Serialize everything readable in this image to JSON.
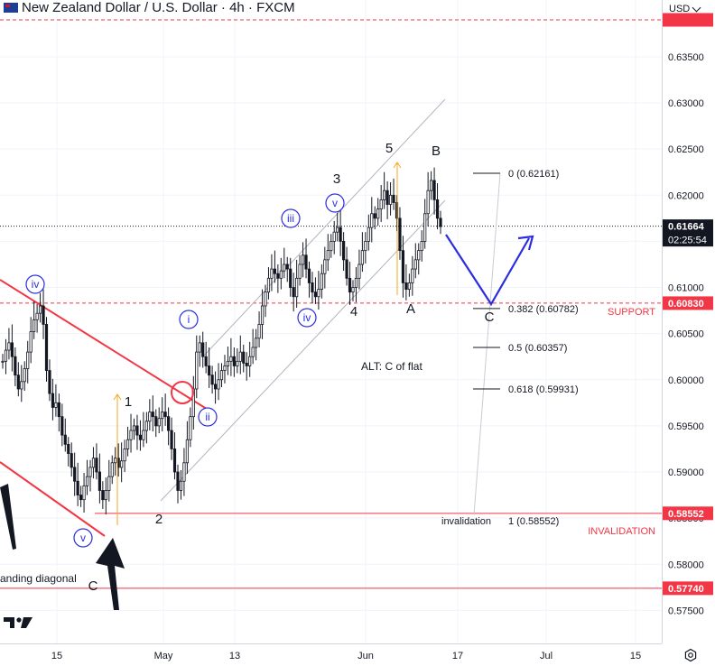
{
  "header": {
    "title": "New Zealand Dollar / U.S. Dollar · 4h · FXCM",
    "currency": "USD"
  },
  "colors": {
    "red": "#f23645",
    "blue": "#2a2ee0",
    "orange": "#f5a623",
    "grid": "#f0f3fa",
    "axis_text": "#131722",
    "current_label_bg": "#131722"
  },
  "chart_data": {
    "type": "candlestick",
    "ylim": [
      0.5722,
      0.6392
    ],
    "yticks": [
      "0.63500",
      "0.63000",
      "0.62500",
      "0.62000",
      "0.61500",
      "0.61000",
      "0.60500",
      "0.60000",
      "0.59500",
      "0.59000",
      "0.58500",
      "0.58000",
      "0.57500"
    ],
    "xticks": [
      "15",
      "May",
      "13",
      "Jun",
      "17",
      "Jul",
      "15"
    ],
    "current_price": {
      "value": 0.61664,
      "label": "0.61664",
      "countdown": "02:25:54"
    },
    "price_labels": [
      {
        "value": 0.6083,
        "label": "0.60830",
        "text": "SUPPORT"
      },
      {
        "value": 0.58552,
        "label": "0.58552",
        "text": "INVALIDATION"
      },
      {
        "value": 0.5774,
        "label": "0.57740",
        "text": ""
      }
    ],
    "fib_levels": [
      {
        "ratio": "0",
        "value": 0.62161,
        "label": "0 (0.62161)"
      },
      {
        "ratio": "0.382",
        "value": 0.60782,
        "label": "0.382 (0.60782)"
      },
      {
        "ratio": "0.5",
        "value": 0.60357,
        "label": "0.5 (0.60357)"
      },
      {
        "ratio": "0.618",
        "value": 0.59931,
        "label": "0.618 (0.59931)"
      },
      {
        "ratio": "1",
        "value": 0.58552,
        "label": "1 (0.58552)",
        "prefix": "invalidation"
      }
    ],
    "wave_labels": {
      "circled": [
        "iv",
        "v",
        "i",
        "ii",
        "iii",
        "iv",
        "v"
      ],
      "plain": [
        "1",
        "2",
        "3",
        "4",
        "5",
        "A",
        "B",
        "C",
        "C"
      ]
    },
    "annotations": {
      "alt": "ALT: C of flat",
      "diagonal": "anding diagonal"
    },
    "series": [
      {
        "values": [
          0.602,
          0.6032,
          0.604,
          0.6025,
          0.6005,
          0.599,
          0.5998,
          0.6012,
          0.603,
          0.6052,
          0.6065,
          0.6072,
          0.608,
          0.606,
          0.601,
          0.5985,
          0.597,
          0.5975,
          0.596,
          0.594,
          0.593,
          0.592,
          0.5905,
          0.589,
          0.5875,
          0.587,
          0.5885,
          0.5895,
          0.5905,
          0.5915,
          0.59,
          0.588,
          0.587,
          0.588,
          0.5895,
          0.591,
          0.5915,
          0.5905,
          0.5912,
          0.5925,
          0.5935,
          0.5945,
          0.595,
          0.594,
          0.5935,
          0.5945,
          0.5955,
          0.5965,
          0.596,
          0.595,
          0.5958,
          0.5965,
          0.596,
          0.5945,
          0.5925,
          0.59,
          0.588,
          0.589,
          0.591,
          0.5935,
          0.596,
          0.599,
          0.603,
          0.604,
          0.6025,
          0.6015,
          0.6005,
          0.5995,
          0.599,
          0.6,
          0.601,
          0.6015,
          0.602,
          0.6025,
          0.6015,
          0.602,
          0.603,
          0.6018,
          0.6015,
          0.6025,
          0.6035,
          0.6045,
          0.606,
          0.608,
          0.6095,
          0.611,
          0.612,
          0.6115,
          0.611,
          0.6118,
          0.6125,
          0.612,
          0.61,
          0.609,
          0.611,
          0.6125,
          0.6135,
          0.612,
          0.6105,
          0.6095,
          0.609,
          0.6098,
          0.6115,
          0.613,
          0.614,
          0.615,
          0.616,
          0.6165,
          0.615,
          0.613,
          0.611,
          0.6095,
          0.61,
          0.611,
          0.6125,
          0.614,
          0.615,
          0.6165,
          0.618,
          0.6175,
          0.6185,
          0.6195,
          0.6205,
          0.619,
          0.62,
          0.6192,
          0.6175,
          0.614,
          0.6105,
          0.6098,
          0.6105,
          0.612,
          0.613,
          0.614,
          0.615,
          0.618,
          0.6205,
          0.6216,
          0.6195,
          0.6175,
          0.6166
        ]
      }
    ]
  }
}
